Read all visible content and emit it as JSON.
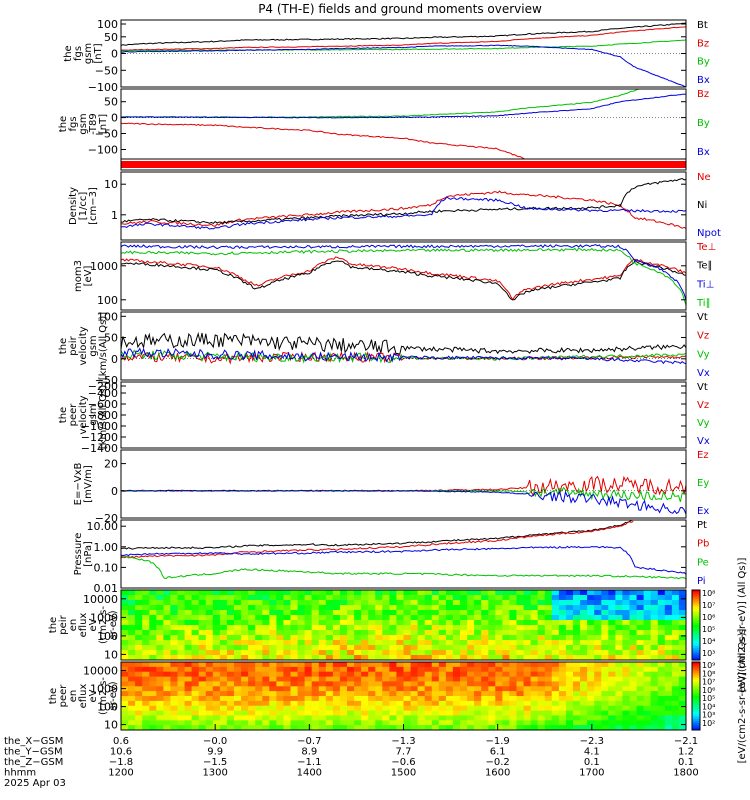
{
  "title": "P4 (TH-E) fields and ground moments overview",
  "chart_data": [
    {
      "type": "line",
      "ylabel": [
        "the",
        "fgs",
        "gsm",
        "[nT]"
      ],
      "ylim": [
        -100,
        100
      ],
      "yticks": [
        "100",
        "50",
        "0",
        "−50",
        "−100"
      ],
      "series": [
        {
          "name": "Bt",
          "color": "#000000",
          "x": [
            1200,
            1230,
            1300,
            1330,
            1400,
            1430,
            1500,
            1530,
            1600,
            1630,
            1700,
            1730,
            1800
          ],
          "y": [
            25,
            30,
            36,
            40,
            42,
            43,
            45,
            48,
            52,
            58,
            66,
            75,
            90
          ]
        },
        {
          "name": "Bz",
          "color": "#e00000",
          "x": [
            1200,
            1230,
            1300,
            1330,
            1400,
            1430,
            1500,
            1530,
            1600,
            1630,
            1700,
            1730,
            1800
          ],
          "y": [
            10,
            12,
            15,
            18,
            20,
            22,
            25,
            30,
            36,
            44,
            54,
            64,
            80
          ]
        },
        {
          "name": "By",
          "color": "#00c000",
          "x": [
            1200,
            1230,
            1300,
            1330,
            1400,
            1430,
            1500,
            1530,
            1600,
            1630,
            1700,
            1730,
            1800
          ],
          "y": [
            8,
            9,
            10,
            10,
            11,
            11,
            12,
            13,
            15,
            18,
            22,
            28,
            40
          ]
        },
        {
          "name": "Bx",
          "color": "#0000e0",
          "x": [
            1200,
            1230,
            1300,
            1330,
            1400,
            1430,
            1500,
            1530,
            1600,
            1630,
            1700,
            1730,
            1745,
            1800
          ],
          "y": [
            5,
            6,
            8,
            10,
            12,
            15,
            18,
            22,
            24,
            22,
            12,
            -10,
            -40,
            -100
          ]
        }
      ]
    },
    {
      "type": "line",
      "ylabel": [
        "the",
        "fgs",
        "gsm",
        "-T89",
        "[nT]"
      ],
      "ylim": [
        -130,
        90
      ],
      "yticks": [
        "50",
        "0",
        "−50",
        "−100"
      ],
      "series": [
        {
          "name": "Bz",
          "color": "#e00000",
          "x": [
            1200,
            1230,
            1300,
            1330,
            1400,
            1430,
            1500,
            1530,
            1600,
            1630
          ],
          "y": [
            -18,
            -20,
            -24,
            -30,
            -40,
            -52,
            -65,
            -80,
            -98,
            -130
          ]
        },
        {
          "name": "By",
          "color": "#00c000",
          "x": [
            1200,
            1230,
            1300,
            1330,
            1400,
            1430,
            1500,
            1530,
            1600,
            1630,
            1700,
            1730,
            1750
          ],
          "y": [
            3,
            2,
            2,
            1,
            2,
            3,
            5,
            9,
            18,
            30,
            48,
            70,
            90
          ]
        },
        {
          "name": "Bx",
          "color": "#0000e0",
          "x": [
            1200,
            1230,
            1300,
            1330,
            1400,
            1430,
            1500,
            1530,
            1600,
            1630,
            1700,
            1730,
            1800
          ],
          "y": [
            2,
            2,
            1,
            1,
            0,
            0,
            1,
            2,
            6,
            14,
            28,
            50,
            75
          ]
        }
      ]
    },
    {
      "type": "heatmap",
      "colorbar_only": true
    },
    {
      "type": "line",
      "scale": "log",
      "ylabel": [
        "Density",
        "[1/cc]",
        "[cm−3]"
      ],
      "ylim": [
        0.15,
        25
      ],
      "yticks": [
        "10",
        "1"
      ],
      "series": [
        {
          "name": "Ne",
          "color": "#e00000",
          "x": [
            1200,
            1230,
            1300,
            1330,
            1400,
            1430,
            1500,
            1530,
            1545,
            1600,
            1630,
            1700,
            1730,
            1745,
            1800
          ],
          "y": [
            0.5,
            0.6,
            0.45,
            0.7,
            1.0,
            1.2,
            1.6,
            2.1,
            4.0,
            5.5,
            4.5,
            3.0,
            2.0,
            0.8,
            0.35
          ]
        },
        {
          "name": "Ni",
          "color": "#000000",
          "x": [
            1200,
            1230,
            1300,
            1330,
            1400,
            1430,
            1500,
            1530,
            1600,
            1630,
            1700,
            1730,
            1745,
            1800
          ],
          "y": [
            0.6,
            0.7,
            0.55,
            0.6,
            0.8,
            0.9,
            1.1,
            1.3,
            1.5,
            1.6,
            1.7,
            2.0,
            8,
            15
          ]
        },
        {
          "name": "Npot",
          "color": "#0000e0",
          "x": [
            1200,
            1230,
            1300,
            1330,
            1400,
            1430,
            1500,
            1530,
            1545,
            1600,
            1630,
            1700,
            1800
          ],
          "y": [
            0.4,
            0.5,
            0.35,
            0.5,
            0.7,
            0.8,
            0.9,
            1.0,
            3.5,
            3.0,
            1.6,
            1.4,
            1.3
          ]
        }
      ]
    },
    {
      "type": "line",
      "scale": "log",
      "ylabel": [
        "mom3",
        "[eV]"
      ],
      "ylim": [
        50,
        5000
      ],
      "yticks": [
        "1000",
        "100"
      ],
      "series": [
        {
          "name": "Te⊥",
          "color": "#e00000",
          "x": [
            1200,
            1230,
            1300,
            1330,
            1345,
            1400,
            1430,
            1445,
            1500,
            1530,
            1600,
            1615,
            1630,
            1700,
            1730,
            1745,
            1800
          ],
          "y": [
            1500,
            1300,
            900,
            400,
            250,
            700,
            1800,
            1100,
            800,
            600,
            350,
            100,
            200,
            400,
            500,
            1500,
            600
          ]
        },
        {
          "name": "Te∥",
          "color": "#000000",
          "x": [
            1200,
            1230,
            1300,
            1330,
            1345,
            1400,
            1430,
            1445,
            1500,
            1530,
            1600,
            1615,
            1630,
            1700,
            1730,
            1745,
            1800
          ],
          "y": [
            1200,
            1100,
            750,
            330,
            200,
            600,
            1500,
            900,
            650,
            500,
            300,
            85,
            170,
            330,
            420,
            1300,
            500
          ]
        },
        {
          "name": "Ti⊥",
          "color": "#0000e0",
          "x": [
            1200,
            1300,
            1400,
            1500,
            1600,
            1700,
            1730,
            1745,
            1800
          ],
          "y": [
            3800,
            3500,
            3600,
            3700,
            3800,
            3800,
            3700,
            1500,
            90
          ]
        },
        {
          "name": "Ti∥",
          "color": "#00c000",
          "x": [
            1200,
            1300,
            1400,
            1500,
            1600,
            1700,
            1730,
            1745,
            1800
          ],
          "y": [
            2500,
            2300,
            2600,
            2800,
            2900,
            3000,
            2800,
            1200,
            70
          ]
        }
      ]
    },
    {
      "type": "line",
      "noisy": true,
      "ylabel": [
        "the",
        "peir",
        "velocity",
        "gsm",
        "[km/s(All Qs)]"
      ],
      "ylim": [
        -50,
        110
      ],
      "yticks": [
        "100",
        "50",
        "0",
        "−50"
      ],
      "series": [
        {
          "name": "Vt",
          "color": "#000000",
          "x": [
            1200,
            1300,
            1400,
            1500,
            1600,
            1700,
            1800
          ],
          "y": [
            40,
            45,
            35,
            25,
            18,
            20,
            30
          ]
        },
        {
          "name": "Vz",
          "color": "#e00000",
          "x": [
            1200,
            1300,
            1400,
            1500,
            1600,
            1700,
            1800
          ],
          "y": [
            5,
            0,
            5,
            2,
            0,
            3,
            5
          ]
        },
        {
          "name": "Vy",
          "color": "#00c000",
          "x": [
            1200,
            1300,
            1400,
            1500,
            1600,
            1700,
            1800
          ],
          "y": [
            10,
            5,
            3,
            2,
            0,
            5,
            10
          ]
        },
        {
          "name": "Vx",
          "color": "#0000e0",
          "x": [
            1200,
            1300,
            1400,
            1500,
            1600,
            1700,
            1800
          ],
          "y": [
            15,
            10,
            5,
            3,
            2,
            0,
            -10
          ]
        }
      ]
    },
    {
      "type": "line",
      "ylabel": [
        "the",
        "peer",
        "velocity",
        "gsm",
        "[km/s(All Qs)]"
      ],
      "ylim": [
        -1400,
        -200
      ],
      "yticks": [
        "−200",
        "−400",
        "−600",
        "−800",
        "−1000",
        "−1200",
        "−1400"
      ],
      "series": [
        {
          "name": "Vt",
          "color": "#000000",
          "x": [],
          "y": []
        },
        {
          "name": "Vz",
          "color": "#e00000",
          "x": [],
          "y": []
        },
        {
          "name": "Vy",
          "color": "#00c000",
          "x": [],
          "y": []
        },
        {
          "name": "Vx",
          "color": "#0000e0",
          "x": [],
          "y": []
        }
      ]
    },
    {
      "type": "line",
      "noisy": true,
      "ylabel": [
        "E=−VxB",
        "[mV/m]"
      ],
      "ylim": [
        -20,
        30
      ],
      "yticks": [
        "20",
        "0",
        "−20"
      ],
      "series": [
        {
          "name": "Ez",
          "color": "#e00000",
          "x": [
            1200,
            1300,
            1400,
            1500,
            1600,
            1700,
            1800
          ],
          "y": [
            0,
            0,
            0,
            0,
            1,
            5,
            3
          ]
        },
        {
          "name": "Ey",
          "color": "#00c000",
          "x": [
            1200,
            1300,
            1400,
            1500,
            1600,
            1700,
            1800
          ],
          "y": [
            0,
            0,
            0,
            0,
            0,
            -2,
            -5
          ]
        },
        {
          "name": "Ex",
          "color": "#0000e0",
          "x": [
            1200,
            1300,
            1400,
            1500,
            1600,
            1700,
            1800
          ],
          "y": [
            0,
            0,
            0,
            0,
            -1,
            -6,
            -15
          ]
        }
      ]
    },
    {
      "type": "line",
      "scale": "log",
      "ylabel": [
        "Pressure",
        "[nPa]"
      ],
      "ylim": [
        0.01,
        20
      ],
      "yticks": [
        "10.00",
        "1.00",
        "0.10",
        "0.01"
      ],
      "series": [
        {
          "name": "Pt",
          "color": "#000000",
          "x": [
            1200,
            1230,
            1300,
            1330,
            1400,
            1430,
            1500,
            1530,
            1600,
            1630,
            1700,
            1730,
            1745
          ],
          "y": [
            0.8,
            0.9,
            0.9,
            1.1,
            1.3,
            1.2,
            1.5,
            1.8,
            2.5,
            3.5,
            6.0,
            11,
            20
          ]
        },
        {
          "name": "Pb",
          "color": "#e00000",
          "x": [
            1200,
            1230,
            1300,
            1330,
            1400,
            1430,
            1500,
            1530,
            1600,
            1630,
            1700,
            1730,
            1745
          ],
          "y": [
            0.3,
            0.35,
            0.4,
            0.55,
            0.7,
            0.75,
            1.0,
            1.3,
            2.0,
            3.0,
            5.5,
            10,
            18
          ]
        },
        {
          "name": "Pe",
          "color": "#00c000",
          "x": [
            1200,
            1230,
            1245,
            1300,
            1330,
            1400,
            1430,
            1500,
            1600,
            1700,
            1800
          ],
          "y": [
            0.35,
            0.2,
            0.03,
            0.05,
            0.08,
            0.06,
            0.05,
            0.05,
            0.04,
            0.04,
            0.03
          ]
        },
        {
          "name": "Pi",
          "color": "#0000e0",
          "x": [
            1200,
            1230,
            1300,
            1330,
            1400,
            1430,
            1500,
            1530,
            1600,
            1630,
            1700,
            1730,
            1745,
            1800
          ],
          "y": [
            0.4,
            0.45,
            0.5,
            0.45,
            0.5,
            0.55,
            0.6,
            0.7,
            0.8,
            0.9,
            1.0,
            0.9,
            0.1,
            0.05
          ]
        }
      ]
    },
    {
      "type": "heatmap",
      "scale": "log",
      "ylabel": [
        "the",
        "peir",
        "en",
        "eflux",
        "eV",
        "(cm2-s-",
        "sr-eV)"
      ],
      "ylim": [
        5,
        30000
      ],
      "yticks": [
        "10000",
        "1000",
        "100",
        "10"
      ],
      "colorbar_label": "[eV/(cm2-s-sr-eV)] (All Qs)]",
      "colorbar_ticks": [
        "10⁸",
        "10⁷",
        "10⁶",
        "10⁵",
        "10⁴",
        "10³"
      ]
    },
    {
      "type": "heatmap",
      "scale": "log",
      "ylabel": [
        "the",
        "peer",
        "en",
        "eflux",
        "eV",
        "(cm2-s-",
        "sr-eV)"
      ],
      "ylim": [
        5,
        30000
      ],
      "yticks": [
        "10000",
        "1000",
        "100",
        "10"
      ],
      "colorbar_label": "[eV/(cm2-s-sr-eV)] (All Qs)]",
      "colorbar_ticks": [
        "10⁹",
        "10⁸",
        "10⁷",
        "10⁶",
        "10⁵",
        "10⁴",
        "10³",
        "10²"
      ]
    }
  ],
  "time_axis": {
    "range": [
      1200,
      1800
    ],
    "rows": [
      {
        "label": "the_X−GSM",
        "values": [
          "0.6",
          "−0.0",
          "−0.7",
          "−1.3",
          "−1.9",
          "−2.3",
          "−2.1"
        ]
      },
      {
        "label": "the_Y−GSM",
        "values": [
          "10.6",
          "9.9",
          "8.9",
          "7.7",
          "6.1",
          "4.1",
          "1.2"
        ]
      },
      {
        "label": "the_Z−GSM",
        "values": [
          "−1.8",
          "−1.5",
          "−1.1",
          "−0.6",
          "−0.2",
          "0.1",
          "0.1"
        ]
      },
      {
        "label": "hhmm",
        "values": [
          "1200",
          "1300",
          "1400",
          "1500",
          "1600",
          "1700",
          "1800"
        ]
      }
    ],
    "date_label": "2025 Apr 03"
  }
}
